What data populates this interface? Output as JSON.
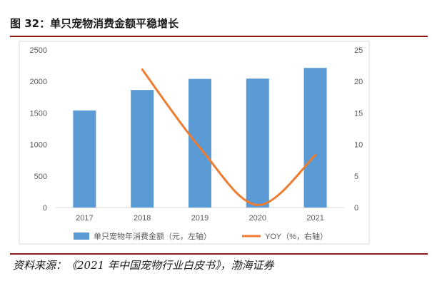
{
  "figure": {
    "title": "图 32：单只宠物消费金额平稳增长",
    "source": "资料来源：《2021 年中国宠物行业白皮书》，渤海证券"
  },
  "colors": {
    "bar": "#5b9bd5",
    "line": "#ed7d31",
    "rule": "#8b1a1a",
    "grid_axis": "#d9d9d9",
    "tick_text": "#595959"
  },
  "chart_data": {
    "type": "bar",
    "categories": [
      "2017",
      "2018",
      "2019",
      "2020",
      "2021"
    ],
    "series": [
      {
        "name": "单只宠物年消费金额（元，左轴）",
        "type": "bar",
        "axis": "left",
        "values": [
          1540,
          1865,
          2040,
          2045,
          2215
        ]
      },
      {
        "name": "YOY（%，右轴）",
        "type": "line",
        "axis": "right",
        "values": [
          null,
          21.9,
          9.5,
          0.4,
          8.3
        ]
      }
    ],
    "y_left": {
      "min": 0,
      "max": 2500,
      "ticks": [
        "0",
        "500",
        "1000",
        "1500",
        "2000",
        "2500"
      ]
    },
    "y_right": {
      "min": 0,
      "max": 25,
      "ticks": [
        "0",
        "5",
        "10",
        "15",
        "20",
        "25"
      ]
    },
    "grid": false,
    "legend_position": "bottom"
  }
}
